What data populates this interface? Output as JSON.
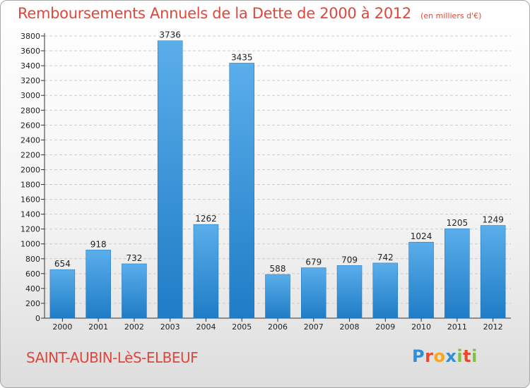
{
  "title": "Remboursements Annuels de la Dette de 2000 à 2012",
  "subtitle": "(en milliers d'€)",
  "town": "SAINT-AUBIN-LèS-ELBEUF",
  "logo": {
    "text": "Proxiti",
    "letters": [
      "P",
      "r",
      "o",
      "x",
      "i",
      "t",
      "i"
    ],
    "colors": [
      "#2f8fd8",
      "#e94b2a",
      "#f5a623",
      "#2f8fd8",
      "#7dc242",
      "#e94b2a",
      "#7dc242"
    ]
  },
  "colors": {
    "accent": "#e0463c",
    "bar_light": "#5aaeea",
    "bar_dark": "#1f7cc6",
    "grid": "#cccccc",
    "axis": "#333333"
  },
  "chart_data": {
    "type": "bar",
    "categories": [
      "2000",
      "2001",
      "2002",
      "2003",
      "2004",
      "2005",
      "2006",
      "2007",
      "2008",
      "2009",
      "2010",
      "2011",
      "2012"
    ],
    "values": [
      654,
      918,
      732,
      3736,
      1262,
      3435,
      588,
      679,
      709,
      742,
      1024,
      1205,
      1249
    ],
    "ylim": [
      0,
      3800
    ],
    "yticks": [
      0,
      200,
      400,
      600,
      800,
      1000,
      1200,
      1400,
      1600,
      1800,
      2000,
      2200,
      2400,
      2600,
      2800,
      3000,
      3200,
      3400,
      3600,
      3800
    ],
    "grid": true,
    "data_labels": true
  }
}
